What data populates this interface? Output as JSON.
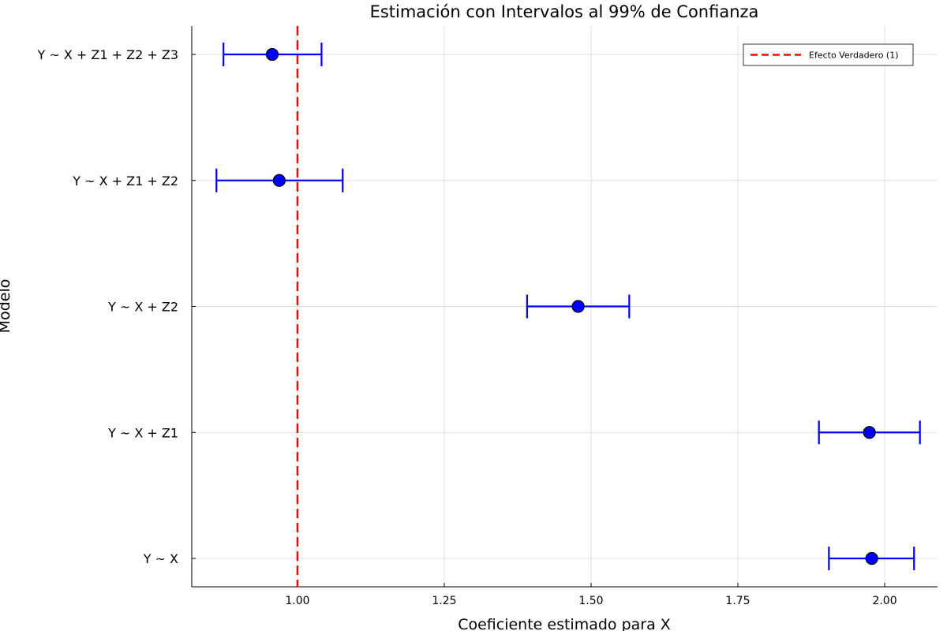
{
  "chart_data": {
    "type": "scatter",
    "title": "Estimación con Intervalos al 99% de Confianza",
    "xlabel": "Coeficiente estimado para X",
    "ylabel": "Modelo",
    "xlim": [
      0.82,
      2.09
    ],
    "x_ticks": [
      "1.00",
      "1.25",
      "1.50",
      "1.75",
      "2.00"
    ],
    "x_tick_values": [
      1.0,
      1.25,
      1.5,
      1.75,
      2.0
    ],
    "grid": true,
    "legend_position": "top-right",
    "categories": [
      "Y ~ X",
      "Y ~ X + Z1",
      "Y ~ X + Z2",
      "Y ~ X + Z1 + Z2",
      "Y ~ X + Z1 + Z2 + Z3"
    ],
    "series": [
      {
        "color": "#0000ff",
        "estimates": [
          1.978,
          1.974,
          1.478,
          0.969,
          0.957
        ],
        "ci_low": [
          1.905,
          1.888,
          1.391,
          0.862,
          0.874
        ],
        "ci_high": [
          2.05,
          2.06,
          1.565,
          1.077,
          1.041
        ]
      }
    ],
    "reference_line": {
      "name": "Efecto Verdadero (1)",
      "x": 1.0,
      "color": "#ff0000",
      "style": "dashed"
    }
  }
}
